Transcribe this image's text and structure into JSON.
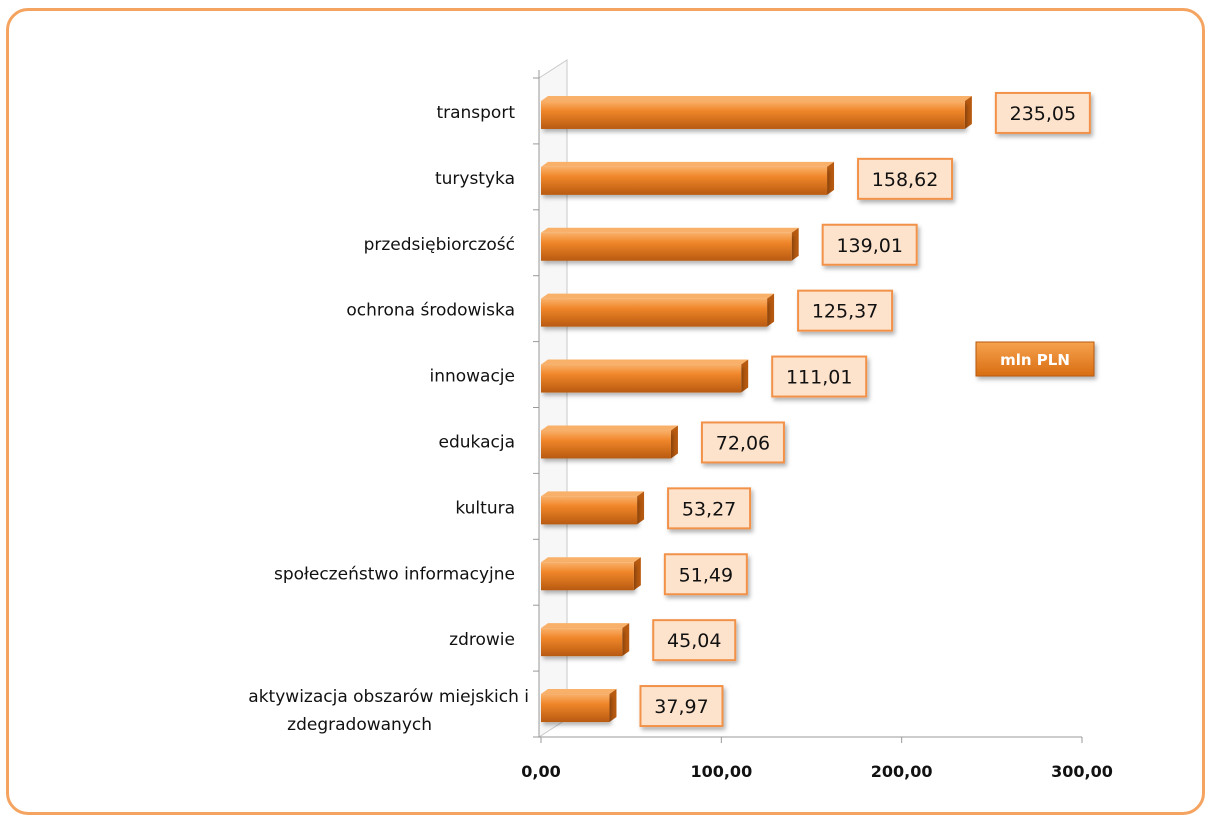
{
  "chart_data": {
    "type": "bar",
    "orientation": "horizontal",
    "categories": [
      "transport",
      "turystyka",
      "przedsiębiorczość",
      "ochrona środowiska",
      "innowacje",
      "edukacja",
      "kultura",
      "społeczeństwo informacyjne",
      "zdrowie",
      "aktywizacja obszarów miejskich i zdegradowanych"
    ],
    "category_lines": [
      [
        "transport"
      ],
      [
        "turystyka"
      ],
      [
        "przedsiębiorczość"
      ],
      [
        "ochrona środowiska"
      ],
      [
        "innowacje"
      ],
      [
        "edukacja"
      ],
      [
        "kultura"
      ],
      [
        "społeczeństwo informacyjne"
      ],
      [
        "zdrowie"
      ],
      [
        "aktywizacja obszarów miejskich i",
        "zdegradowanych"
      ]
    ],
    "values": [
      235.05,
      158.62,
      139.01,
      125.37,
      111.01,
      72.06,
      53.27,
      51.49,
      45.04,
      37.97
    ],
    "value_labels": [
      "235,05",
      "158,62",
      "139,01",
      "125,37",
      "111,01",
      "72,06",
      "53,27",
      "51,49",
      "45,04",
      "37,97"
    ],
    "xlim": [
      0,
      300
    ],
    "x_ticks": [
      0,
      100,
      200,
      300
    ],
    "x_tick_labels": [
      "0,00",
      "100,00",
      "200,00",
      "300,00"
    ],
    "unit_label": "mln PLN",
    "grid": false,
    "colors": {
      "bar": "#f0862a",
      "bar_dark": "#b85a10",
      "bar_light": "#f9b16a",
      "label_fill": "#fde2cc",
      "label_border": "#f2924a",
      "frame": "#f4a460",
      "unit_fill": "#e87d1e"
    }
  }
}
